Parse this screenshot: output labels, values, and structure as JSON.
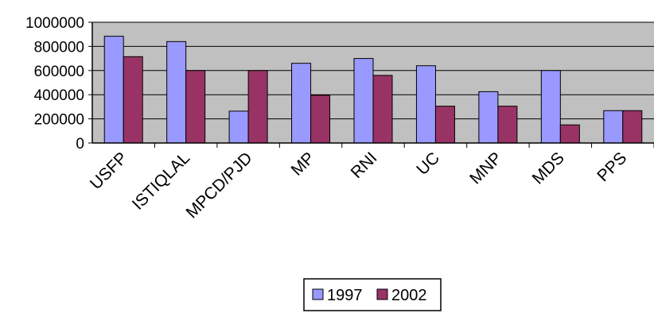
{
  "chart_data": {
    "type": "bar",
    "title": "",
    "xlabel": "",
    "ylabel": "",
    "categories": [
      "USFP",
      "ISTIQLAL",
      "MPCD/PJD",
      "MP",
      "RNI",
      "UC",
      "MNP",
      "MDS",
      "PPS"
    ],
    "series": [
      {
        "name": "1997",
        "color": "#9999ff",
        "values": [
          884000,
          840000,
          264000,
          660000,
          700000,
          640000,
          425000,
          600000,
          268000
        ]
      },
      {
        "name": "2002",
        "color": "#993366",
        "values": [
          715000,
          600000,
          600000,
          395000,
          560000,
          305000,
          305000,
          150000,
          268000
        ]
      }
    ],
    "ylim": [
      0,
      1000000
    ],
    "yticks": [
      "0",
      "200000",
      "400000",
      "600000",
      "800000",
      "1000000"
    ],
    "grid": true,
    "plot_background": "#c0c0c0",
    "legend_position": "bottom"
  }
}
